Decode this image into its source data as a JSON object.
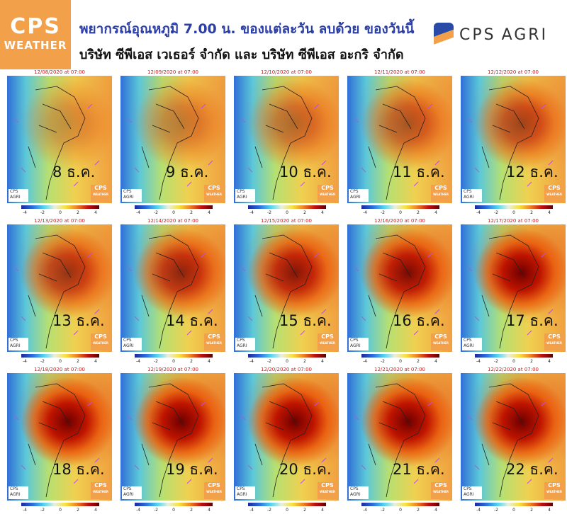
{
  "header": {
    "logo_left": {
      "line1": "CPS",
      "line2": "WEATHER"
    },
    "title": "พยากรณ์อุณหภูมิ 7.00 น. ของแต่ละวัน ลบด้วย ของวันนี้",
    "subtitle": "บริษัท ซีพีเอส เวเธอร์ จำกัด และ บริษัท ซีพีเอส อะกริ จำกัด",
    "logo_right": {
      "line1": "CPS",
      "line2": "AGRI"
    }
  },
  "colorbar_ticks": [
    -4,
    -2,
    0,
    2,
    4
  ],
  "panels": [
    {
      "timestamp": "12/08/2020 at 07:00",
      "day": "8 ธ.ค."
    },
    {
      "timestamp": "12/09/2020 at 07:00",
      "day": "9 ธ.ค."
    },
    {
      "timestamp": "12/10/2020 at 07:00",
      "day": "10 ธ.ค."
    },
    {
      "timestamp": "12/11/2020 at 07:00",
      "day": "11 ธ.ค."
    },
    {
      "timestamp": "12/12/2020 at 07:00",
      "day": "12 ธ.ค."
    },
    {
      "timestamp": "12/13/2020 at 07:00",
      "day": "13 ธ.ค."
    },
    {
      "timestamp": "12/14/2020 at 07:00",
      "day": "14 ธ.ค."
    },
    {
      "timestamp": "12/15/2020 at 07:00",
      "day": "15 ธ.ค."
    },
    {
      "timestamp": "12/16/2020 at 07:00",
      "day": "16 ธ.ค."
    },
    {
      "timestamp": "12/17/2020 at 07:00",
      "day": "17 ธ.ค."
    },
    {
      "timestamp": "12/18/2020 at 07:00",
      "day": "18 ธ.ค."
    },
    {
      "timestamp": "12/19/2020 at 07:00",
      "day": "19 ธ.ค."
    },
    {
      "timestamp": "12/20/2020 at 07:00",
      "day": "20 ธ.ค."
    },
    {
      "timestamp": "12/21/2020 at 07:00",
      "day": "21 ธ.ค."
    },
    {
      "timestamp": "12/22/2020 at 07:00",
      "day": "22 ธ.ค."
    }
  ]
}
